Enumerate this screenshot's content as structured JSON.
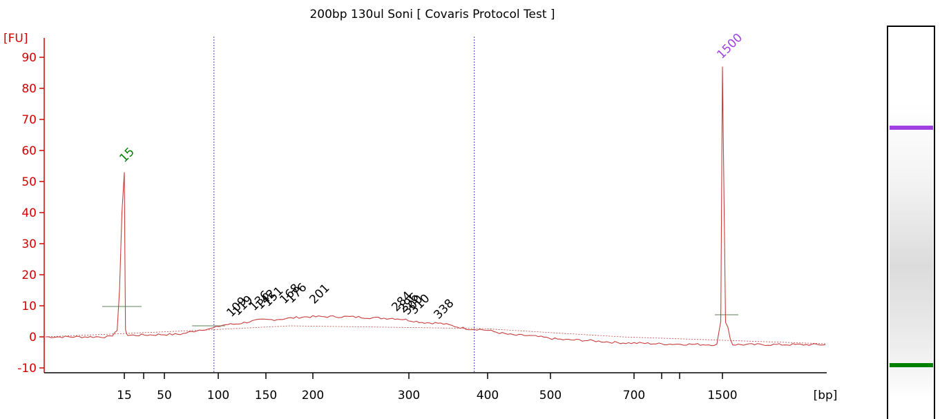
{
  "colors": {
    "trace": "#c83c3c",
    "y_axis": "#d40000",
    "x_axis": "#000000",
    "region_marker": "#4040c0",
    "lower_marker": "#008000",
    "upper_marker": "#a040e0",
    "baseline": "#c83c3c",
    "peak_bar": "#7a9a7a"
  },
  "chart_data": {
    "type": "line",
    "title": "200bp 130ul Soni  [ Covaris Protocol Test ]",
    "ylabel": "[FU]",
    "xlabel": "[bp]",
    "ylim": [
      -10,
      95
    ],
    "yticks": [
      -10,
      0,
      10,
      20,
      30,
      40,
      50,
      60,
      70,
      80,
      90
    ],
    "x_scale": "size ladder (non-linear)",
    "x_tick_labels": [
      "15",
      "",
      "50",
      "100",
      "150",
      "200",
      "300",
      "400",
      "500",
      "700",
      "",
      "",
      "1500"
    ],
    "region_markers_bp": [
      96,
      383
    ],
    "lower_marker": {
      "label": "15",
      "bp": 15,
      "fu": 53
    },
    "upper_marker": {
      "label": "1500",
      "bp": 1500,
      "fu": 87
    },
    "peak_labels": [
      "109",
      "119",
      "136",
      "142",
      "151",
      "168",
      "176",
      "201",
      "284",
      "296",
      "300",
      "310",
      "338"
    ],
    "trace_points": [
      {
        "bp": 4,
        "fu": 0
      },
      {
        "bp": 13,
        "fu": 0
      },
      {
        "bp": 14,
        "fu": 2
      },
      {
        "bp": 15,
        "fu": 53
      },
      {
        "bp": 16,
        "fu": 2
      },
      {
        "bp": 18,
        "fu": 0.5
      },
      {
        "bp": 60,
        "fu": 0.8
      },
      {
        "bp": 90,
        "fu": 2.5
      },
      {
        "bp": 110,
        "fu": 4
      },
      {
        "bp": 150,
        "fu": 5.5
      },
      {
        "bp": 200,
        "fu": 6.5
      },
      {
        "bp": 230,
        "fu": 6.5
      },
      {
        "bp": 280,
        "fu": 6
      },
      {
        "bp": 330,
        "fu": 4.5
      },
      {
        "bp": 383,
        "fu": 2.5
      },
      {
        "bp": 450,
        "fu": 0.5
      },
      {
        "bp": 550,
        "fu": -1
      },
      {
        "bp": 700,
        "fu": -2
      },
      {
        "bp": 1000,
        "fu": -2.3
      },
      {
        "bp": 1450,
        "fu": -2.5
      },
      {
        "bp": 1485,
        "fu": 5
      },
      {
        "bp": 1500,
        "fu": 87
      },
      {
        "bp": 1515,
        "fu": 5
      },
      {
        "bp": 1550,
        "fu": -2.5
      },
      {
        "bp": 2000,
        "fu": -2.5
      }
    ]
  }
}
